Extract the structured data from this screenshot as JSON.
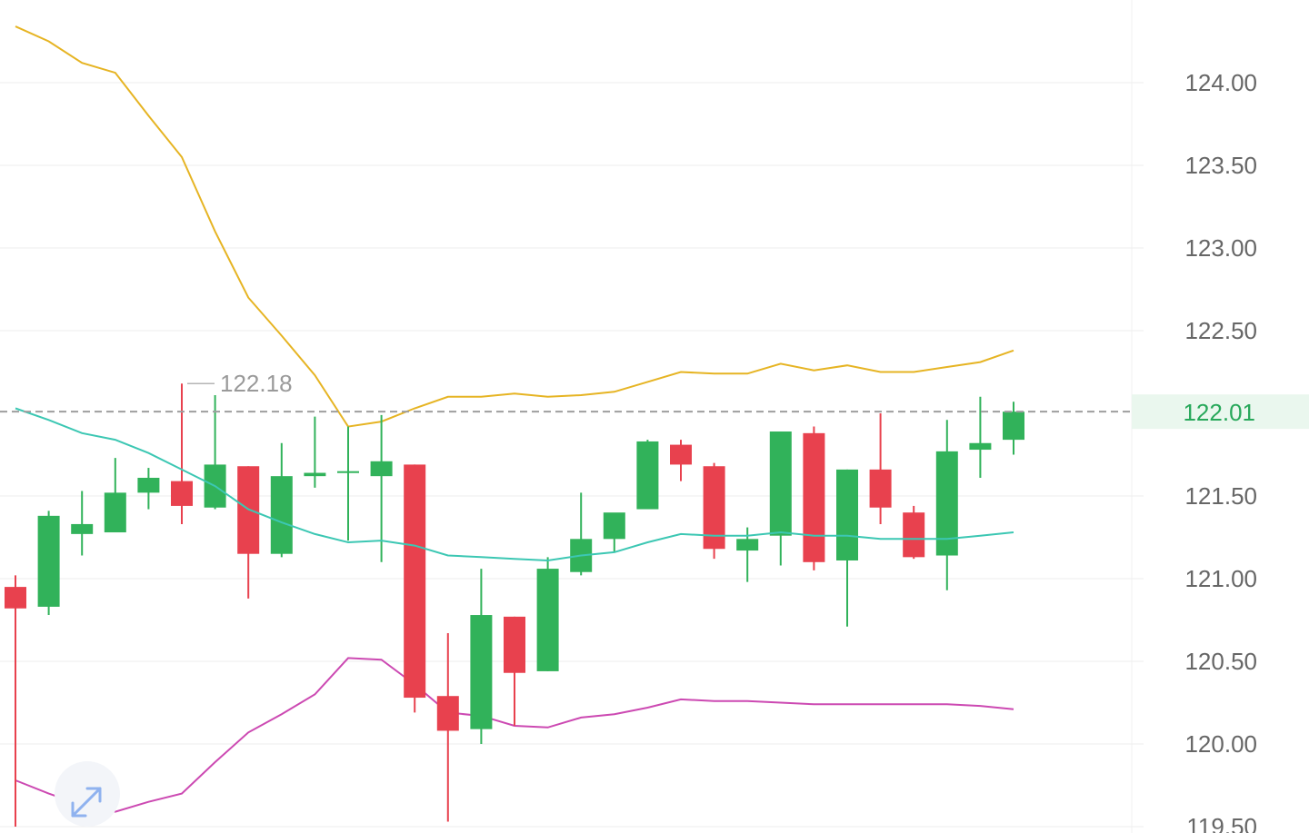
{
  "chart_data": {
    "type": "candlestick",
    "y_axis": {
      "min": 119.5,
      "max": 124.4,
      "ticks": [
        "124.00",
        "123.50",
        "123.00",
        "122.50",
        "121.50",
        "121.00",
        "120.50",
        "120.00",
        "119.50"
      ]
    },
    "last_price": {
      "value": 122.01,
      "label": "122.01"
    },
    "high_marker": {
      "value": 122.18,
      "label": "122.18"
    },
    "candles": [
      {
        "o": 120.95,
        "h": 121.02,
        "l": 119.5,
        "c": 120.82
      },
      {
        "o": 120.83,
        "h": 121.41,
        "l": 120.78,
        "c": 121.38
      },
      {
        "o": 121.27,
        "h": 121.53,
        "l": 121.14,
        "c": 121.33
      },
      {
        "o": 121.28,
        "h": 121.73,
        "l": 121.28,
        "c": 121.52
      },
      {
        "o": 121.52,
        "h": 121.67,
        "l": 121.42,
        "c": 121.61
      },
      {
        "o": 121.59,
        "h": 122.18,
        "l": 121.33,
        "c": 121.44
      },
      {
        "o": 121.43,
        "h": 122.11,
        "l": 121.42,
        "c": 121.69
      },
      {
        "o": 121.68,
        "h": 121.68,
        "l": 120.88,
        "c": 121.15
      },
      {
        "o": 121.15,
        "h": 121.82,
        "l": 121.13,
        "c": 121.62
      },
      {
        "o": 121.62,
        "h": 121.98,
        "l": 121.55,
        "c": 121.64
      },
      {
        "o": 121.64,
        "h": 121.92,
        "l": 121.23,
        "c": 121.65
      },
      {
        "o": 121.62,
        "h": 121.99,
        "l": 121.1,
        "c": 121.71
      },
      {
        "o": 121.69,
        "h": 121.69,
        "l": 120.19,
        "c": 120.28
      },
      {
        "o": 120.29,
        "h": 120.67,
        "l": 119.53,
        "c": 120.08
      },
      {
        "o": 120.09,
        "h": 121.06,
        "l": 120.0,
        "c": 120.78
      },
      {
        "o": 120.77,
        "h": 120.77,
        "l": 120.11,
        "c": 120.43
      },
      {
        "o": 120.44,
        "h": 121.13,
        "l": 120.44,
        "c": 121.06
      },
      {
        "o": 121.04,
        "h": 121.52,
        "l": 121.02,
        "c": 121.24
      },
      {
        "o": 121.24,
        "h": 121.37,
        "l": 121.16,
        "c": 121.4
      },
      {
        "o": 121.42,
        "h": 121.84,
        "l": 121.42,
        "c": 121.83
      },
      {
        "o": 121.81,
        "h": 121.84,
        "l": 121.59,
        "c": 121.69
      },
      {
        "o": 121.68,
        "h": 121.7,
        "l": 121.12,
        "c": 121.18
      },
      {
        "o": 121.17,
        "h": 121.31,
        "l": 120.98,
        "c": 121.24
      },
      {
        "o": 121.26,
        "h": 121.89,
        "l": 121.08,
        "c": 121.89
      },
      {
        "o": 121.88,
        "h": 121.92,
        "l": 121.05,
        "c": 121.1
      },
      {
        "o": 121.11,
        "h": 121.66,
        "l": 120.71,
        "c": 121.66
      },
      {
        "o": 121.66,
        "h": 122.0,
        "l": 121.33,
        "c": 121.43
      },
      {
        "o": 121.4,
        "h": 121.44,
        "l": 121.12,
        "c": 121.13
      },
      {
        "o": 121.14,
        "h": 121.96,
        "l": 120.93,
        "c": 121.77
      },
      {
        "o": 121.78,
        "h": 122.1,
        "l": 121.61,
        "c": 121.82
      },
      {
        "o": 121.84,
        "h": 122.07,
        "l": 121.75,
        "c": 122.01
      }
    ],
    "bands": {
      "upper": [
        124.34,
        124.25,
        124.12,
        124.06,
        123.8,
        123.55,
        123.1,
        122.7,
        122.47,
        122.23,
        121.92,
        121.95,
        122.03,
        122.1,
        122.1,
        122.12,
        122.1,
        122.11,
        122.13,
        122.19,
        122.25,
        122.24,
        122.24,
        122.3,
        122.26,
        122.29,
        122.25,
        122.25,
        122.28,
        122.31,
        122.38
      ],
      "middle": [
        122.03,
        121.96,
        121.88,
        121.84,
        121.76,
        121.66,
        121.56,
        121.42,
        121.34,
        121.27,
        121.22,
        121.23,
        121.2,
        121.14,
        121.13,
        121.12,
        121.11,
        121.14,
        121.16,
        121.22,
        121.27,
        121.26,
        121.26,
        121.28,
        121.26,
        121.26,
        121.24,
        121.24,
        121.24,
        121.26,
        121.28
      ],
      "lower": [
        119.78,
        119.7,
        119.63,
        119.59,
        119.65,
        119.7,
        119.89,
        120.07,
        120.18,
        120.3,
        120.52,
        120.51,
        120.36,
        120.19,
        120.17,
        120.11,
        120.1,
        120.16,
        120.18,
        120.22,
        120.27,
        120.26,
        120.26,
        120.25,
        120.24,
        120.24,
        120.24,
        120.24,
        120.24,
        120.23,
        120.21
      ]
    },
    "colors": {
      "up": "#31b25a",
      "down": "#e8414e",
      "upper_band": "#e6b423",
      "middle_band": "#3cc7b3",
      "lower_band": "#cc49b2",
      "grid": "#eeeeee",
      "last_price_line": "#9e9e9e",
      "last_price_bg": "#eaf7ee",
      "axis_text": "#666666"
    },
    "grid": true
  },
  "controls": {
    "expand_icon": "expand-arrows-icon"
  }
}
